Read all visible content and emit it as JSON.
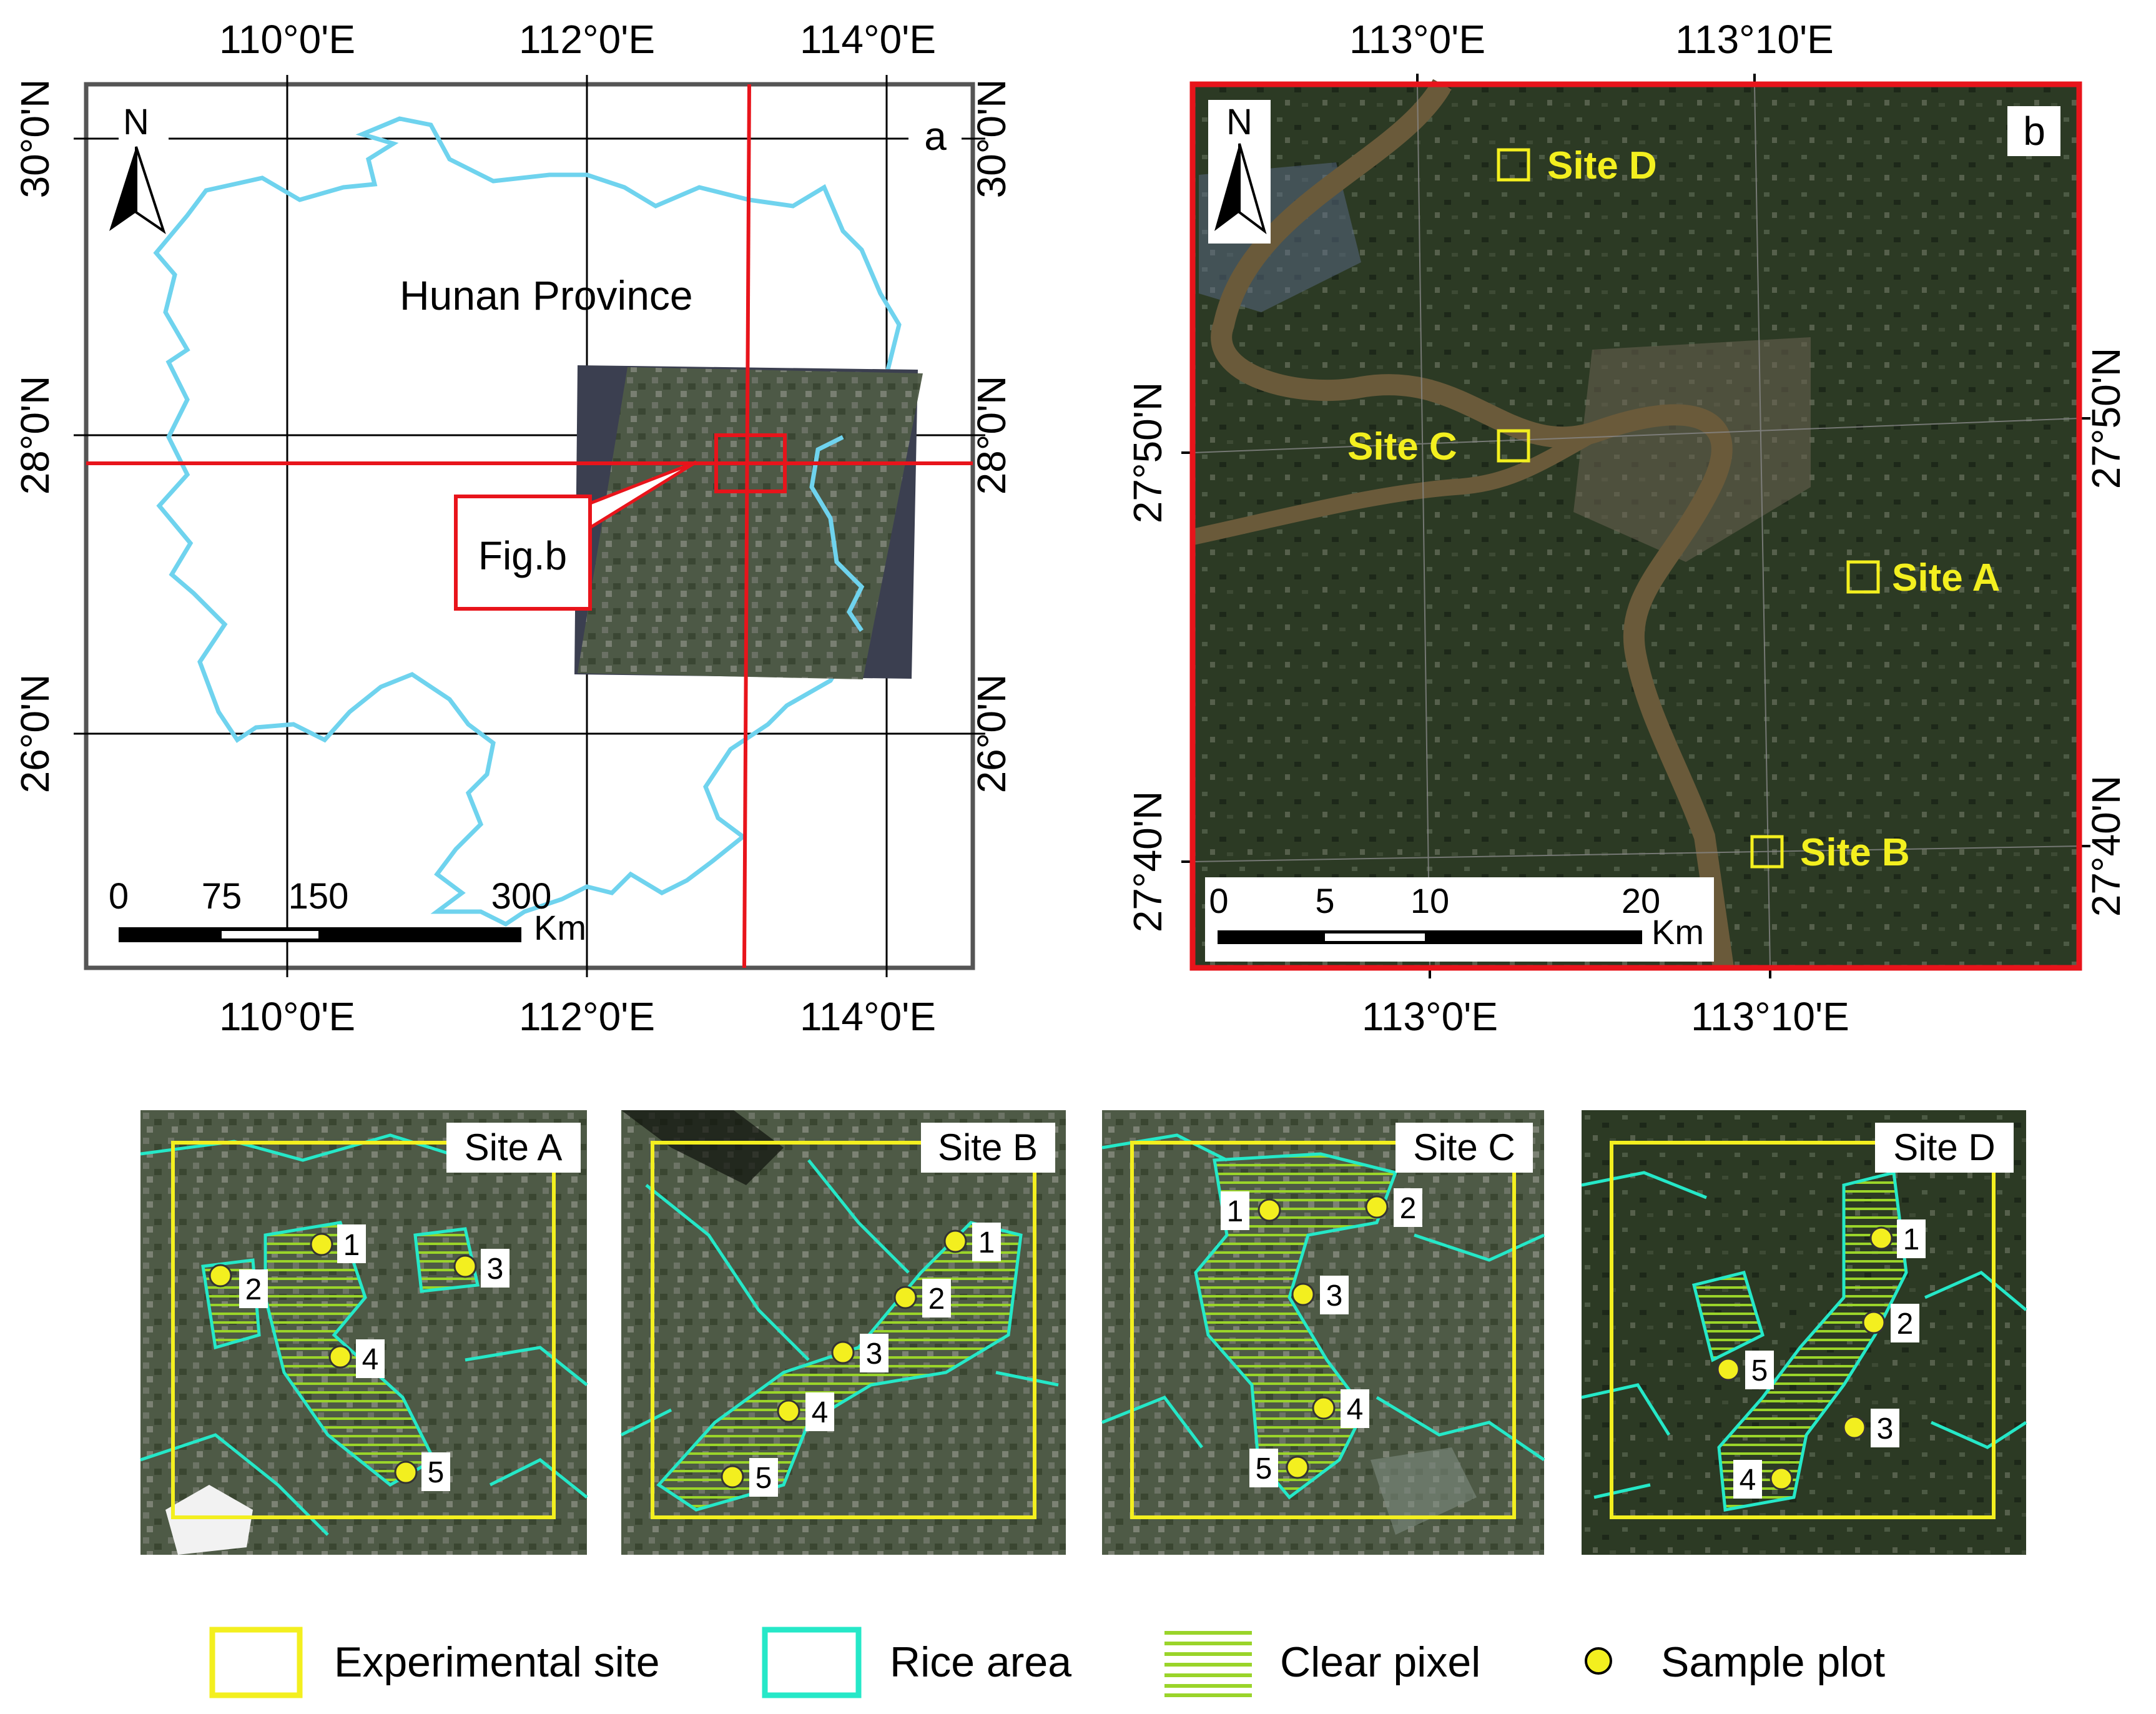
{
  "panel_a": {
    "lon_ticks": [
      "110°0'E",
      "112°0'E",
      "114°0'E"
    ],
    "lat_ticks": [
      "30°0'N",
      "28°0'N",
      "26°0'N"
    ],
    "panel_letter": "a",
    "north": "N",
    "province_label": "Hunan Province",
    "callout": "Fig.b",
    "scale_numbers": [
      "0",
      "75",
      "150",
      "300"
    ],
    "scale_unit": "Km"
  },
  "panel_b": {
    "lon_ticks": [
      "113°0'E",
      "113°10'E"
    ],
    "lat_ticks": [
      "27°50'N",
      "27°40'N"
    ],
    "panel_letter": "b",
    "north": "N",
    "sites": [
      "Site D",
      "Site C",
      "Site A",
      "Site B"
    ],
    "scale_numbers": [
      "0",
      "5",
      "10",
      "20"
    ],
    "scale_unit": "Km"
  },
  "insets": [
    {
      "title": "Site A",
      "plots": [
        "1",
        "2",
        "3",
        "4",
        "5"
      ]
    },
    {
      "title": "Site B",
      "plots": [
        "1",
        "2",
        "3",
        "4",
        "5"
      ]
    },
    {
      "title": "Site C",
      "plots": [
        "1",
        "2",
        "3",
        "4",
        "5"
      ]
    },
    {
      "title": "Site D",
      "plots": [
        "1",
        "2",
        "3",
        "4",
        "5"
      ]
    }
  ],
  "legend": {
    "experimental_site": "Experimental site",
    "rice_area": "Rice area",
    "clear_pixel": "Clear pixel",
    "sample_plot": "Sample plot"
  },
  "colors": {
    "boundary": "#6fd3ee",
    "frame_red": "#e8141b",
    "site_yellow": "#f3ef1f",
    "rice_cyan": "#25e8c8",
    "clear_green": "#9ad42a",
    "imagery_dark": "#27331f"
  }
}
